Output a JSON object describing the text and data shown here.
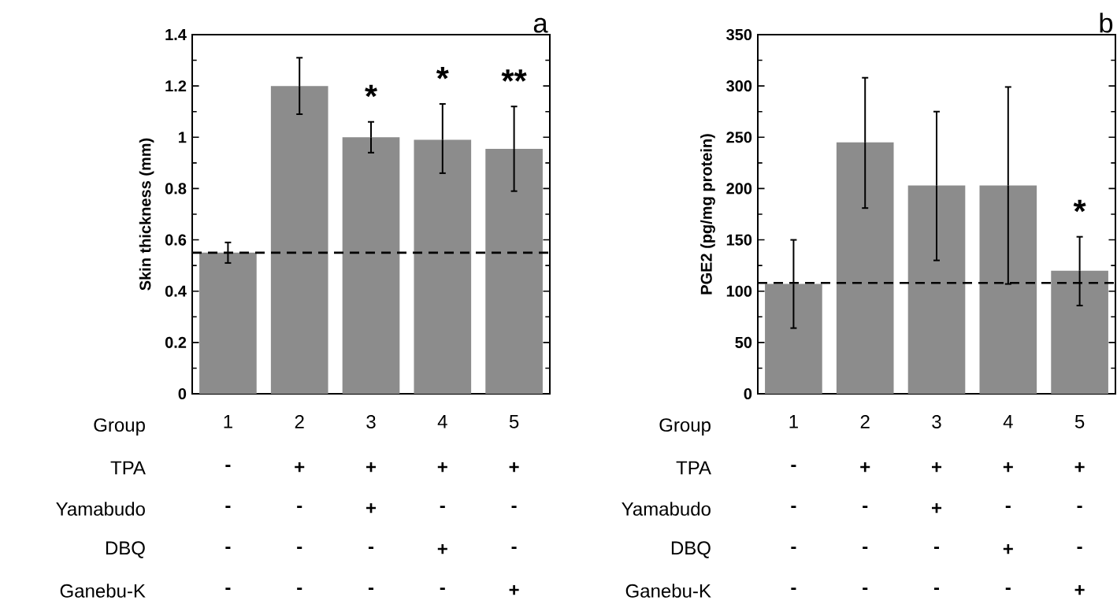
{
  "chart_data": [
    {
      "type": "bar",
      "title": "a",
      "ylabel": "Skin thickness (mm)",
      "xlabel": "Group",
      "categories": [
        "1",
        "2",
        "3",
        "4",
        "5"
      ],
      "values": [
        0.55,
        1.2,
        1.0,
        0.99,
        0.955
      ],
      "color": "#8c8c8c",
      "errors": [
        [
          0.51,
          0.59
        ],
        [
          1.09,
          1.31
        ],
        [
          0.94,
          1.06
        ],
        [
          0.86,
          1.13
        ],
        [
          0.79,
          1.12
        ]
      ],
      "ylim": [
        0,
        1.4
      ],
      "yticks": [
        0,
        0.2,
        0.4,
        0.6,
        0.8,
        1,
        1.2,
        1.4
      ],
      "ref_lines": [
        {
          "axis": "y",
          "value": 0.55,
          "color": "#000000",
          "line_style": "dashed"
        }
      ],
      "annotations": [
        {
          "text": "*",
          "x": "3",
          "y": 1.06
        },
        {
          "text": "*",
          "x": "4",
          "y": 1.13
        },
        {
          "text": "**",
          "x": "5",
          "y": 1.12
        },
        "TPA",
        "-",
        "+",
        "+",
        "+",
        "+",
        "Yamabudo",
        "-",
        "-",
        "+",
        "-",
        "-",
        "DBQ",
        "-",
        "-",
        "-",
        "+",
        "-",
        "Ganebu-K",
        "-",
        "-",
        "-",
        "-",
        "+"
      ]
    },
    {
      "type": "bar",
      "title": "b",
      "ylabel": "PGE2 (pg/mg protein)",
      "xlabel": "Group",
      "categories": [
        "1",
        "2",
        "3",
        "4",
        "5"
      ],
      "values": [
        107,
        245,
        203,
        203,
        120
      ],
      "color": "#8c8c8c",
      "errors": [
        [
          64,
          150
        ],
        [
          181,
          308
        ],
        [
          130,
          275
        ],
        [
          107,
          299
        ],
        [
          86,
          153
        ]
      ],
      "ylim": [
        0,
        350
      ],
      "yticks": [
        0,
        50,
        100,
        150,
        200,
        250,
        300,
        350
      ],
      "ref_lines": [
        {
          "axis": "y",
          "value": 108,
          "color": "#000000",
          "line_style": "dashed"
        }
      ],
      "annotations": [
        {
          "text": "*",
          "x": "5",
          "y": 153
        },
        "TPA",
        "-",
        "+",
        "+",
        "+",
        "+",
        "Yamabudo",
        "-",
        "-",
        "+",
        "-",
        "-",
        "DBQ",
        "-",
        "-",
        "-",
        "+",
        "-",
        "Ganebu-K",
        "-",
        "-",
        "-",
        "-",
        "+"
      ]
    }
  ]
}
